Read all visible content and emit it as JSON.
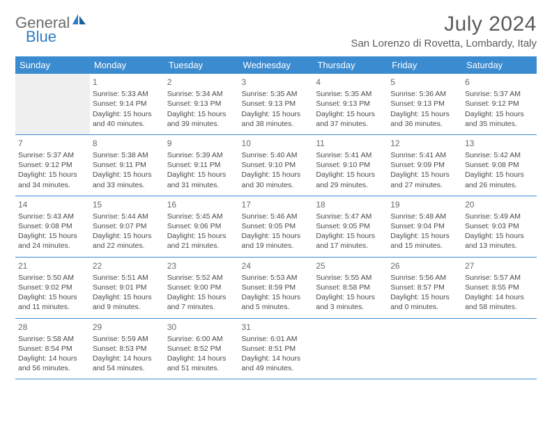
{
  "logo": {
    "part1": "General",
    "part2": "Blue"
  },
  "title": "July 2024",
  "location": "San Lorenzo di Rovetta, Lombardy, Italy",
  "colors": {
    "header_bg": "#3b8bd0",
    "header_text": "#ffffff",
    "row_border": "#3b8bd0",
    "logo_gray": "#6b6b6b",
    "logo_blue": "#2b7cc4",
    "empty_bg": "#efefef",
    "body_text": "#4a4a4a"
  },
  "weekdays": [
    "Sunday",
    "Monday",
    "Tuesday",
    "Wednesday",
    "Thursday",
    "Friday",
    "Saturday"
  ],
  "weeks": [
    [
      null,
      {
        "n": "1",
        "sr": "5:33 AM",
        "ss": "9:14 PM",
        "dh": "15",
        "dm": "40"
      },
      {
        "n": "2",
        "sr": "5:34 AM",
        "ss": "9:13 PM",
        "dh": "15",
        "dm": "39"
      },
      {
        "n": "3",
        "sr": "5:35 AM",
        "ss": "9:13 PM",
        "dh": "15",
        "dm": "38"
      },
      {
        "n": "4",
        "sr": "5:35 AM",
        "ss": "9:13 PM",
        "dh": "15",
        "dm": "37"
      },
      {
        "n": "5",
        "sr": "5:36 AM",
        "ss": "9:13 PM",
        "dh": "15",
        "dm": "36"
      },
      {
        "n": "6",
        "sr": "5:37 AM",
        "ss": "9:12 PM",
        "dh": "15",
        "dm": "35"
      }
    ],
    [
      {
        "n": "7",
        "sr": "5:37 AM",
        "ss": "9:12 PM",
        "dh": "15",
        "dm": "34"
      },
      {
        "n": "8",
        "sr": "5:38 AM",
        "ss": "9:11 PM",
        "dh": "15",
        "dm": "33"
      },
      {
        "n": "9",
        "sr": "5:39 AM",
        "ss": "9:11 PM",
        "dh": "15",
        "dm": "31"
      },
      {
        "n": "10",
        "sr": "5:40 AM",
        "ss": "9:10 PM",
        "dh": "15",
        "dm": "30"
      },
      {
        "n": "11",
        "sr": "5:41 AM",
        "ss": "9:10 PM",
        "dh": "15",
        "dm": "29"
      },
      {
        "n": "12",
        "sr": "5:41 AM",
        "ss": "9:09 PM",
        "dh": "15",
        "dm": "27"
      },
      {
        "n": "13",
        "sr": "5:42 AM",
        "ss": "9:08 PM",
        "dh": "15",
        "dm": "26"
      }
    ],
    [
      {
        "n": "14",
        "sr": "5:43 AM",
        "ss": "9:08 PM",
        "dh": "15",
        "dm": "24"
      },
      {
        "n": "15",
        "sr": "5:44 AM",
        "ss": "9:07 PM",
        "dh": "15",
        "dm": "22"
      },
      {
        "n": "16",
        "sr": "5:45 AM",
        "ss": "9:06 PM",
        "dh": "15",
        "dm": "21"
      },
      {
        "n": "17",
        "sr": "5:46 AM",
        "ss": "9:05 PM",
        "dh": "15",
        "dm": "19"
      },
      {
        "n": "18",
        "sr": "5:47 AM",
        "ss": "9:05 PM",
        "dh": "15",
        "dm": "17"
      },
      {
        "n": "19",
        "sr": "5:48 AM",
        "ss": "9:04 PM",
        "dh": "15",
        "dm": "15"
      },
      {
        "n": "20",
        "sr": "5:49 AM",
        "ss": "9:03 PM",
        "dh": "15",
        "dm": "13"
      }
    ],
    [
      {
        "n": "21",
        "sr": "5:50 AM",
        "ss": "9:02 PM",
        "dh": "15",
        "dm": "11"
      },
      {
        "n": "22",
        "sr": "5:51 AM",
        "ss": "9:01 PM",
        "dh": "15",
        "dm": "9"
      },
      {
        "n": "23",
        "sr": "5:52 AM",
        "ss": "9:00 PM",
        "dh": "15",
        "dm": "7"
      },
      {
        "n": "24",
        "sr": "5:53 AM",
        "ss": "8:59 PM",
        "dh": "15",
        "dm": "5"
      },
      {
        "n": "25",
        "sr": "5:55 AM",
        "ss": "8:58 PM",
        "dh": "15",
        "dm": "3"
      },
      {
        "n": "26",
        "sr": "5:56 AM",
        "ss": "8:57 PM",
        "dh": "15",
        "dm": "0"
      },
      {
        "n": "27",
        "sr": "5:57 AM",
        "ss": "8:55 PM",
        "dh": "14",
        "dm": "58"
      }
    ],
    [
      {
        "n": "28",
        "sr": "5:58 AM",
        "ss": "8:54 PM",
        "dh": "14",
        "dm": "56"
      },
      {
        "n": "29",
        "sr": "5:59 AM",
        "ss": "8:53 PM",
        "dh": "14",
        "dm": "54"
      },
      {
        "n": "30",
        "sr": "6:00 AM",
        "ss": "8:52 PM",
        "dh": "14",
        "dm": "51"
      },
      {
        "n": "31",
        "sr": "6:01 AM",
        "ss": "8:51 PM",
        "dh": "14",
        "dm": "49"
      },
      null,
      null,
      null
    ]
  ],
  "labels": {
    "sunrise": "Sunrise:",
    "sunset": "Sunset:",
    "daylight": "Daylight:",
    "hours": "hours",
    "and": "and",
    "minutes": "minutes."
  }
}
